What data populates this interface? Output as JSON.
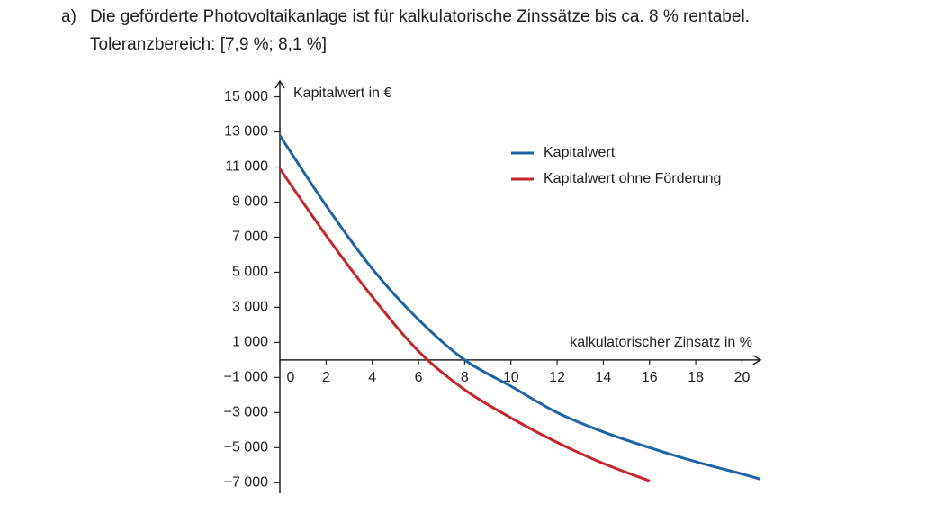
{
  "header": {
    "label": "a)",
    "line1": "Die geförderte Photovoltaikanlage ist für kalkulatorische Zinssätze bis ca. 8 % rentabel.",
    "line2": "Toleranzbereich: [7,9 %; 8,1 %]"
  },
  "chart_data": {
    "type": "line",
    "y_label": "Kapitalwert in €",
    "x_label": "kalkulatorischer Zinsatz in %",
    "x": [
      0,
      2,
      4,
      6,
      8,
      10,
      12,
      14,
      16,
      18,
      20,
      20.8
    ],
    "series": [
      {
        "name": "Kapitalwert",
        "color": "#1f63a3",
        "values": [
          12800,
          8800,
          5200,
          2300,
          0,
          -1500,
          -3000,
          -4100,
          -5000,
          -5800,
          -6500,
          -6800
        ]
      },
      {
        "name": "Kapitalwert ohne Förderung",
        "color": "#c1272d",
        "values": [
          10900,
          7100,
          3600,
          500,
          -1700,
          -3300,
          -4700,
          -5900,
          -6900,
          null,
          null,
          null
        ]
      }
    ],
    "xlim": [
      0,
      20.8
    ],
    "ylim": [
      -7600,
      15900
    ],
    "xticks": [
      0,
      2,
      4,
      6,
      8,
      10,
      12,
      14,
      16,
      18,
      20
    ],
    "yticks": [
      {
        "value": 15000,
        "label": "15 000"
      },
      {
        "value": 13000,
        "label": "13 000"
      },
      {
        "value": 11000,
        "label": "11 000"
      },
      {
        "value": 9000,
        "label": "9 000"
      },
      {
        "value": 7000,
        "label": "7 000"
      },
      {
        "value": 5000,
        "label": "5 000"
      },
      {
        "value": 3000,
        "label": "3 000"
      },
      {
        "value": 1000,
        "label": "1 000"
      },
      {
        "value": -1000,
        "label": "−1 000"
      },
      {
        "value": -3000,
        "label": "−3 000"
      },
      {
        "value": -5000,
        "label": "−5 000"
      },
      {
        "value": -7000,
        "label": "−7 000"
      }
    ],
    "legend": "upper right"
  }
}
